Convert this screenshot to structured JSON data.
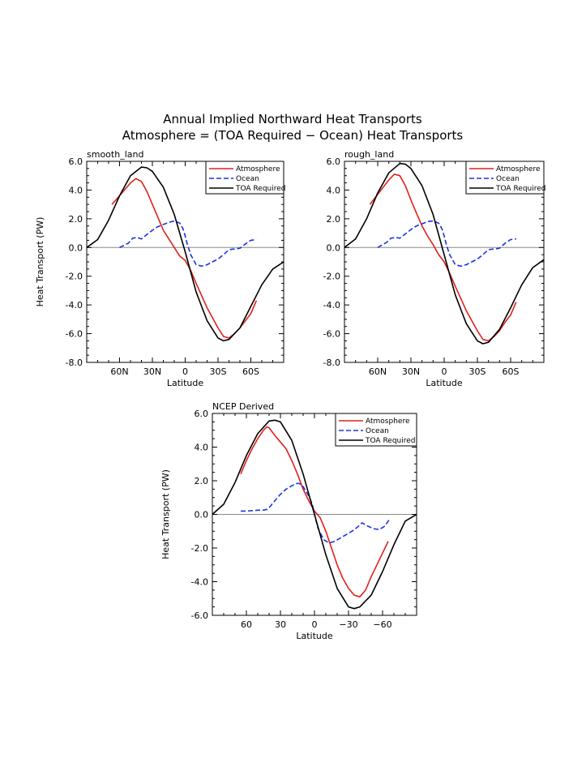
{
  "figure": {
    "title_line1": "Annual Implied Northward Heat Transports",
    "title_line2": "Atmosphere = (TOA Required − Ocean) Heat Transports"
  },
  "chart_data": [
    {
      "type": "line",
      "title": "smooth_land",
      "xlabel": "Latitude",
      "ylabel": "Heat Transport (PW)",
      "xlim": [
        90,
        -90
      ],
      "ylim": [
        -8,
        6
      ],
      "xticks": [
        {
          "v": 60,
          "label": "60N"
        },
        {
          "v": 30,
          "label": "30N"
        },
        {
          "v": 0,
          "label": "0"
        },
        {
          "v": -30,
          "label": "30S"
        },
        {
          "v": -60,
          "label": "60S"
        }
      ],
      "yticks": [
        {
          "v": 6,
          "label": "6.0"
        },
        {
          "v": 4,
          "label": "4.0"
        },
        {
          "v": 2,
          "label": "2.0"
        },
        {
          "v": 0,
          "label": "0.0"
        },
        {
          "v": -2,
          "label": "-2.0"
        },
        {
          "v": -4,
          "label": "-4.0"
        },
        {
          "v": -6,
          "label": "-6.0"
        },
        {
          "v": -8,
          "label": "-8.0"
        }
      ],
      "series": [
        {
          "name": "Atmosphere",
          "color": "#e0201b",
          "dash": "solid",
          "x": [
            67,
            60,
            50,
            45,
            40,
            35,
            30,
            25,
            20,
            15,
            10,
            5,
            0,
            -5,
            -10,
            -20,
            -30,
            -35,
            -40,
            -45,
            -50,
            -55,
            -60,
            -65
          ],
          "y": [
            3.0,
            3.6,
            4.5,
            4.8,
            4.6,
            3.9,
            3.0,
            2.1,
            1.2,
            0.6,
            0.0,
            -0.6,
            -0.9,
            -1.6,
            -2.5,
            -4.2,
            -5.6,
            -6.2,
            -6.3,
            -6.0,
            -5.6,
            -5.1,
            -4.6,
            -3.7
          ]
        },
        {
          "name": "Ocean",
          "color": "#1a33dd",
          "dash": "dashed",
          "x": [
            60,
            52,
            48,
            44,
            40,
            35,
            30,
            25,
            20,
            15,
            10,
            5,
            2,
            0,
            -2,
            -5,
            -10,
            -15,
            -20,
            -25,
            -30,
            -35,
            -40,
            -45,
            -50,
            -55,
            -60,
            -65
          ],
          "y": [
            0.0,
            0.3,
            0.65,
            0.7,
            0.6,
            0.9,
            1.2,
            1.45,
            1.6,
            1.75,
            1.85,
            1.7,
            1.3,
            0.8,
            0.2,
            -0.5,
            -1.2,
            -1.3,
            -1.2,
            -1.0,
            -0.8,
            -0.5,
            -0.15,
            -0.1,
            -0.05,
            0.25,
            0.5,
            0.55
          ]
        },
        {
          "name": "TOA Required",
          "color": "#000000",
          "dash": "solid",
          "x": [
            90,
            80,
            70,
            60,
            50,
            40,
            35,
            30,
            20,
            10,
            0,
            -10,
            -20,
            -30,
            -35,
            -40,
            -50,
            -60,
            -70,
            -80,
            -90
          ],
          "y": [
            0.0,
            0.55,
            1.9,
            3.6,
            5.0,
            5.6,
            5.55,
            5.3,
            4.2,
            2.3,
            -0.3,
            -3.1,
            -5.1,
            -6.3,
            -6.5,
            -6.4,
            -5.6,
            -4.1,
            -2.6,
            -1.5,
            -1.0
          ]
        }
      ]
    },
    {
      "type": "line",
      "title": "rough_land",
      "xlabel": "Latitude",
      "ylabel": "",
      "xlim": [
        90,
        -90
      ],
      "ylim": [
        -8,
        6
      ],
      "xticks": [
        {
          "v": 60,
          "label": "60N"
        },
        {
          "v": 30,
          "label": "30N"
        },
        {
          "v": 0,
          "label": "0"
        },
        {
          "v": -30,
          "label": "30S"
        },
        {
          "v": -60,
          "label": "60S"
        }
      ],
      "yticks": [
        {
          "v": 6,
          "label": "6.0"
        },
        {
          "v": 4,
          "label": "4.0"
        },
        {
          "v": 2,
          "label": "2.0"
        },
        {
          "v": 0,
          "label": "0.0"
        },
        {
          "v": -2,
          "label": "-2.0"
        },
        {
          "v": -4,
          "label": "-4.0"
        },
        {
          "v": -6,
          "label": "-6.0"
        },
        {
          "v": -8,
          "label": "-8.0"
        }
      ],
      "series": [
        {
          "name": "Atmosphere",
          "color": "#e0201b",
          "dash": "solid",
          "x": [
            67,
            60,
            50,
            45,
            40,
            35,
            30,
            25,
            20,
            15,
            10,
            5,
            0,
            -5,
            -10,
            -20,
            -30,
            -35,
            -40,
            -45,
            -50,
            -55,
            -60,
            -65
          ],
          "y": [
            3.0,
            3.7,
            4.7,
            5.1,
            5.0,
            4.3,
            3.3,
            2.4,
            1.5,
            0.8,
            0.2,
            -0.5,
            -1.0,
            -1.8,
            -2.7,
            -4.4,
            -5.8,
            -6.4,
            -6.5,
            -6.2,
            -5.8,
            -5.2,
            -4.7,
            -3.8
          ]
        },
        {
          "name": "Ocean",
          "color": "#1a33dd",
          "dash": "dashed",
          "x": [
            60,
            52,
            48,
            44,
            40,
            35,
            30,
            25,
            20,
            15,
            10,
            5,
            2,
            0,
            -2,
            -5,
            -10,
            -15,
            -20,
            -25,
            -30,
            -35,
            -40,
            -45,
            -50,
            -55,
            -60,
            -65
          ],
          "y": [
            0.0,
            0.35,
            0.65,
            0.7,
            0.65,
            0.95,
            1.25,
            1.5,
            1.65,
            1.8,
            1.85,
            1.7,
            1.3,
            0.8,
            0.2,
            -0.5,
            -1.2,
            -1.3,
            -1.2,
            -1.0,
            -0.8,
            -0.5,
            -0.15,
            -0.1,
            -0.05,
            0.3,
            0.55,
            0.6
          ]
        },
        {
          "name": "TOA Required",
          "color": "#000000",
          "dash": "solid",
          "x": [
            90,
            80,
            70,
            60,
            50,
            40,
            35,
            30,
            20,
            10,
            0,
            -10,
            -20,
            -30,
            -35,
            -40,
            -50,
            -60,
            -70,
            -80,
            -90
          ],
          "y": [
            0.0,
            0.6,
            2.0,
            3.8,
            5.2,
            5.85,
            5.8,
            5.5,
            4.3,
            2.3,
            -0.5,
            -3.3,
            -5.3,
            -6.5,
            -6.7,
            -6.6,
            -5.7,
            -4.2,
            -2.6,
            -1.4,
            -0.85
          ]
        }
      ]
    },
    {
      "type": "line",
      "title": "NCEP Derived",
      "xlabel": "Latitude",
      "ylabel": "Heat Transport (PW)",
      "xlim": [
        90,
        -90
      ],
      "ylim": [
        -6,
        6
      ],
      "xticks": [
        {
          "v": 60,
          "label": "60"
        },
        {
          "v": 30,
          "label": "30"
        },
        {
          "v": 0,
          "label": "0"
        },
        {
          "v": -30,
          "label": "−30"
        },
        {
          "v": -60,
          "label": "−60"
        }
      ],
      "yticks": [
        {
          "v": 6,
          "label": "6.0"
        },
        {
          "v": 4,
          "label": "4.0"
        },
        {
          "v": 2,
          "label": "2.0"
        },
        {
          "v": 0,
          "label": "0.0"
        },
        {
          "v": -2,
          "label": "-2.0"
        },
        {
          "v": -4,
          "label": "-4.0"
        },
        {
          "v": -6,
          "label": "-6.0"
        }
      ],
      "series": [
        {
          "name": "Atmosphere",
          "color": "#e0201b",
          "dash": "solid",
          "x": [
            65,
            60,
            55,
            50,
            45,
            42,
            40,
            35,
            30,
            25,
            20,
            15,
            10,
            5,
            0,
            -5,
            -10,
            -15,
            -20,
            -25,
            -30,
            -35,
            -40,
            -45,
            -50,
            -55,
            -60,
            -65
          ],
          "y": [
            2.4,
            3.2,
            3.9,
            4.5,
            5.0,
            5.2,
            5.15,
            4.7,
            4.3,
            3.9,
            3.2,
            2.4,
            1.5,
            0.8,
            0.2,
            -0.2,
            -1.0,
            -2.0,
            -3.0,
            -3.8,
            -4.4,
            -4.8,
            -4.9,
            -4.5,
            -3.7,
            -3.0,
            -2.3,
            -1.6
          ]
        },
        {
          "name": "Ocean",
          "color": "#1a33dd",
          "dash": "dashed",
          "x": [
            65,
            60,
            50,
            45,
            42,
            40,
            35,
            30,
            25,
            20,
            15,
            12,
            10,
            5,
            2,
            0,
            -3,
            -8,
            -13,
            -18,
            -23,
            -28,
            -33,
            -38,
            -42,
            -47,
            -52,
            -57,
            -62,
            -66
          ],
          "y": [
            0.2,
            0.2,
            0.25,
            0.25,
            0.3,
            0.4,
            0.8,
            1.2,
            1.5,
            1.7,
            1.85,
            1.8,
            1.65,
            1.1,
            0.6,
            0.0,
            -0.8,
            -1.5,
            -1.7,
            -1.6,
            -1.4,
            -1.2,
            -1.0,
            -0.75,
            -0.5,
            -0.7,
            -0.85,
            -0.9,
            -0.7,
            -0.3
          ]
        },
        {
          "name": "TOA Required",
          "color": "#000000",
          "dash": "solid",
          "x": [
            90,
            80,
            70,
            60,
            50,
            40,
            35,
            30,
            20,
            10,
            0,
            -10,
            -20,
            -30,
            -35,
            -40,
            -50,
            -60,
            -70,
            -80,
            -90
          ],
          "y": [
            0.0,
            0.6,
            1.9,
            3.5,
            4.8,
            5.55,
            5.6,
            5.5,
            4.4,
            2.4,
            0.0,
            -2.4,
            -4.4,
            -5.5,
            -5.6,
            -5.5,
            -4.8,
            -3.4,
            -1.8,
            -0.4,
            0.0
          ]
        }
      ]
    }
  ]
}
